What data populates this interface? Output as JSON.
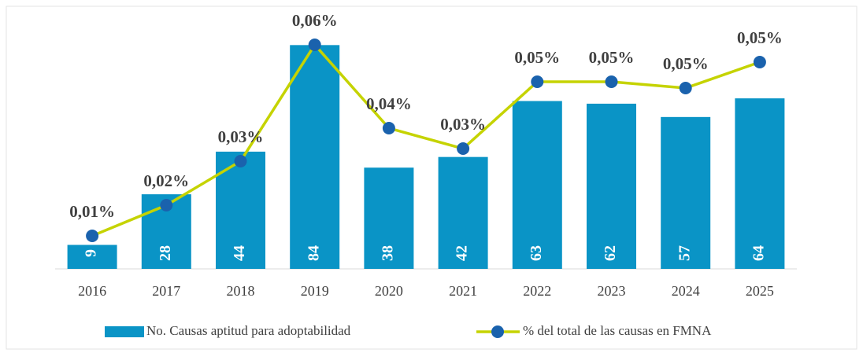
{
  "chart_data": {
    "type": "bar_line",
    "categories": [
      "2016",
      "2017",
      "2018",
      "2019",
      "2020",
      "2021",
      "2022",
      "2023",
      "2024",
      "2025"
    ],
    "series": [
      {
        "name": "No. Causas aptitud para adoptabilidad",
        "type": "bar",
        "color": "#0a94c6",
        "values": [
          9,
          28,
          44,
          84,
          38,
          42,
          63,
          62,
          57,
          64
        ]
      },
      {
        "name": "% del total de las causas en FMNA",
        "type": "line",
        "axis": "y2",
        "color": "#c5d300",
        "marker_color": "#1a62ad",
        "values": [
          0.0084,
          0.0162,
          0.0274,
          0.057,
          0.0358,
          0.0306,
          0.0476,
          0.0476,
          0.046,
          0.0526
        ],
        "value_labels": [
          "0,01%",
          "0,02%",
          "0,03%",
          "0,06%",
          "0,04%",
          "0,03%",
          "0,05%",
          "0,05%",
          "0,05%",
          "0,05%"
        ]
      }
    ],
    "ylim": [
      0,
      90
    ],
    "y2lim": [
      0,
      0.061
    ],
    "legend": "bottom"
  }
}
